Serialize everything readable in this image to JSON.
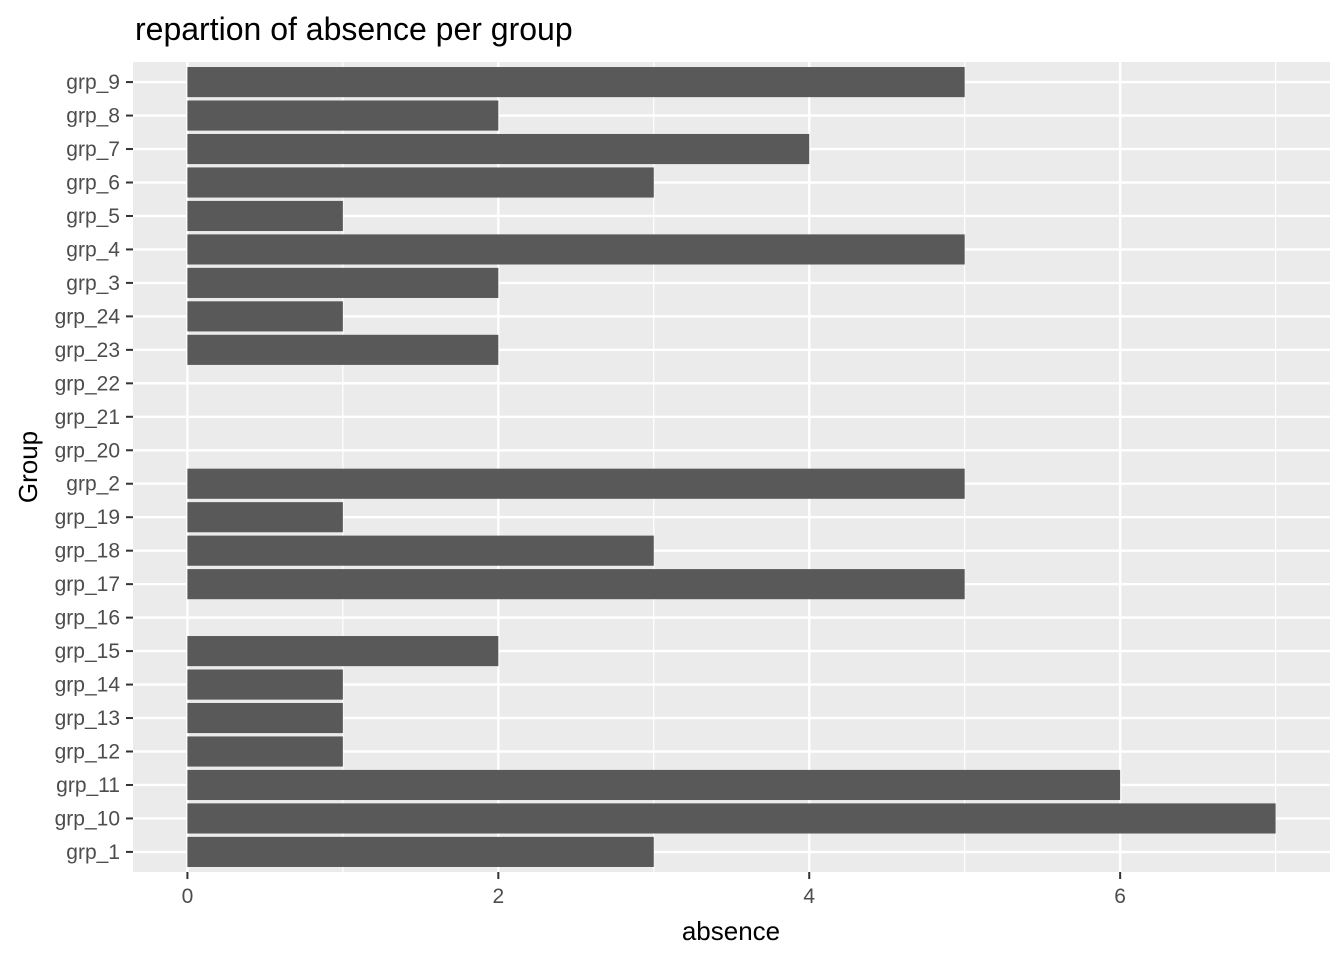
{
  "chart_data": {
    "type": "bar",
    "orientation": "horizontal",
    "title": "repartion of absence per group",
    "xlabel": "absence",
    "ylabel": "Group",
    "xlim": [
      -0.35,
      7.35
    ],
    "xticks": [
      0,
      2,
      4,
      6
    ],
    "grid": true,
    "legend": "none",
    "categories": [
      "grp_1",
      "grp_10",
      "grp_11",
      "grp_12",
      "grp_13",
      "grp_14",
      "grp_15",
      "grp_16",
      "grp_17",
      "grp_18",
      "grp_19",
      "grp_2",
      "grp_20",
      "grp_21",
      "grp_22",
      "grp_23",
      "grp_24",
      "grp_3",
      "grp_4",
      "grp_5",
      "grp_6",
      "grp_7",
      "grp_8",
      "grp_9"
    ],
    "values": [
      3,
      7,
      6,
      1,
      1,
      1,
      2,
      0,
      5,
      3,
      1,
      5,
      0,
      0,
      0,
      2,
      1,
      2,
      5,
      1,
      3,
      4,
      2,
      5
    ],
    "colors": {
      "panel": "#ebebeb",
      "grid": "#ffffff",
      "bar": "#595959",
      "tick": "#333333"
    }
  }
}
